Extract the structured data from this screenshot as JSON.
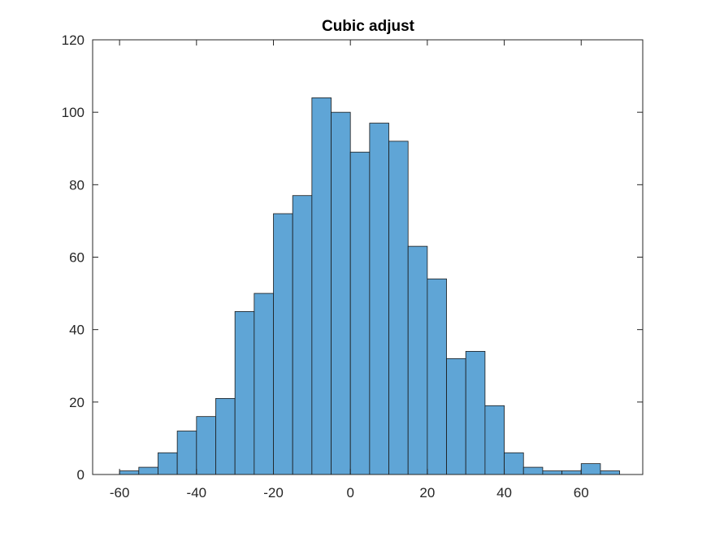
{
  "chart_data": {
    "type": "bar",
    "title": "Cubic adjust",
    "xlabel": "",
    "ylabel": "",
    "xlim": [
      -67,
      76
    ],
    "ylim": [
      0,
      120
    ],
    "x_ticks": [
      -60,
      -40,
      -20,
      0,
      20,
      40,
      60
    ],
    "y_ticks": [
      0,
      20,
      40,
      60,
      80,
      100,
      120
    ],
    "bin_edges": [
      -60,
      -55,
      -50,
      -45,
      -40,
      -35,
      -30,
      -25,
      -20,
      -15,
      -10,
      -5,
      0,
      5,
      10,
      15,
      20,
      25,
      30,
      35,
      40,
      45,
      50,
      55,
      60,
      65,
      70
    ],
    "values": [
      1,
      2,
      6,
      12,
      16,
      21,
      45,
      50,
      72,
      77,
      104,
      100,
      89,
      97,
      92,
      63,
      54,
      32,
      34,
      19,
      6,
      2,
      1,
      1,
      3,
      1
    ],
    "bar_color": "#5fa5d6",
    "bar_edge_color": "#1a1a1a",
    "grid": false
  }
}
